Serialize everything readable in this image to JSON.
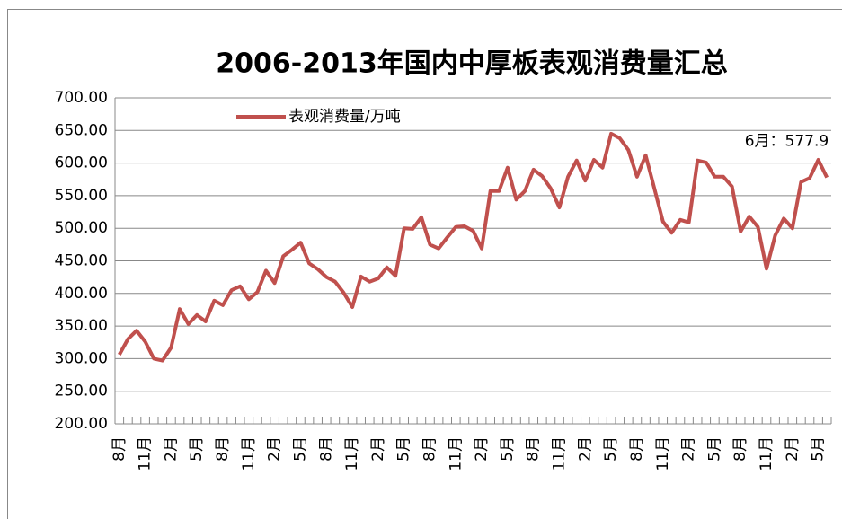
{
  "chart_data": {
    "type": "line",
    "title": "2006-2013年国内中厚板表观消费量汇总",
    "categories": [
      "8月",
      null,
      null,
      "11月",
      null,
      null,
      "2月",
      null,
      null,
      "5月",
      null,
      null,
      "8月",
      null,
      null,
      "11月",
      null,
      null,
      "2月",
      null,
      null,
      "5月",
      null,
      null,
      "8月",
      null,
      null,
      "11月",
      null,
      null,
      "2月",
      null,
      null,
      "5月",
      null,
      null,
      "8月",
      null,
      null,
      "11月",
      null,
      null,
      "2月",
      null,
      null,
      "5月",
      null,
      null,
      "8月",
      null,
      null,
      "11月",
      null,
      null,
      "2月",
      null,
      null,
      "5月",
      null,
      null,
      "8月",
      null,
      null,
      "11月",
      null,
      null,
      "2月",
      null,
      null,
      "5月",
      null,
      null,
      "8月",
      null,
      null,
      "11月",
      null,
      null,
      "2月",
      null,
      null,
      "5月",
      null
    ],
    "series": [
      {
        "name": "表观消费量/万吨",
        "color": "#c0504d",
        "values": [
          306,
          330,
          343,
          326,
          300,
          297,
          317,
          376,
          353,
          367,
          357,
          389,
          382,
          405,
          411,
          391,
          402,
          435,
          416,
          457,
          467,
          478,
          446,
          437,
          425,
          418,
          401,
          379,
          426,
          418,
          423,
          440,
          427,
          500,
          499,
          517,
          475,
          469,
          486,
          502,
          503,
          496,
          469,
          557,
          557,
          593,
          544,
          557,
          590,
          580,
          561,
          532,
          579,
          604,
          573,
          605,
          593,
          645,
          638,
          620,
          579,
          612,
          561,
          510,
          493,
          513,
          509,
          604,
          601,
          579,
          579,
          564,
          495,
          518,
          502,
          438,
          489,
          515,
          500,
          571,
          577,
          605,
          577.9
        ],
        "value_labels": [
          null,
          null,
          null,
          null,
          null,
          null,
          null,
          null,
          null,
          null,
          null,
          null,
          null,
          null,
          null,
          null,
          null,
          null,
          null,
          null,
          null,
          null,
          null,
          null,
          null,
          null,
          null,
          null,
          null,
          null,
          null,
          null,
          null,
          null,
          null,
          null,
          null,
          null,
          null,
          null,
          null,
          null,
          null,
          null,
          null,
          null,
          null,
          null,
          null,
          null,
          null,
          null,
          null,
          null,
          null,
          null,
          null,
          null,
          null,
          null,
          null,
          null,
          null,
          null,
          null,
          null,
          null,
          null,
          null,
          null,
          null,
          null,
          null,
          null,
          null,
          null,
          null,
          null,
          null,
          null,
          null,
          null,
          "6月：577.9"
        ]
      }
    ],
    "ylim": [
      200,
      700
    ],
    "yticks": [
      {
        "value": 200,
        "label": "200.00"
      },
      {
        "value": 250,
        "label": "250.00"
      },
      {
        "value": 300,
        "label": "300.00"
      },
      {
        "value": 350,
        "label": "350.00"
      },
      {
        "value": 400,
        "label": "400.00"
      },
      {
        "value": 450,
        "label": "450.00"
      },
      {
        "value": 500,
        "label": "500.00"
      },
      {
        "value": 550,
        "label": "550.00"
      },
      {
        "value": 600,
        "label": "600.00"
      },
      {
        "value": 650,
        "label": "650.00"
      },
      {
        "value": 700,
        "label": "700.00"
      }
    ],
    "grid": true,
    "legend": "top-left"
  }
}
